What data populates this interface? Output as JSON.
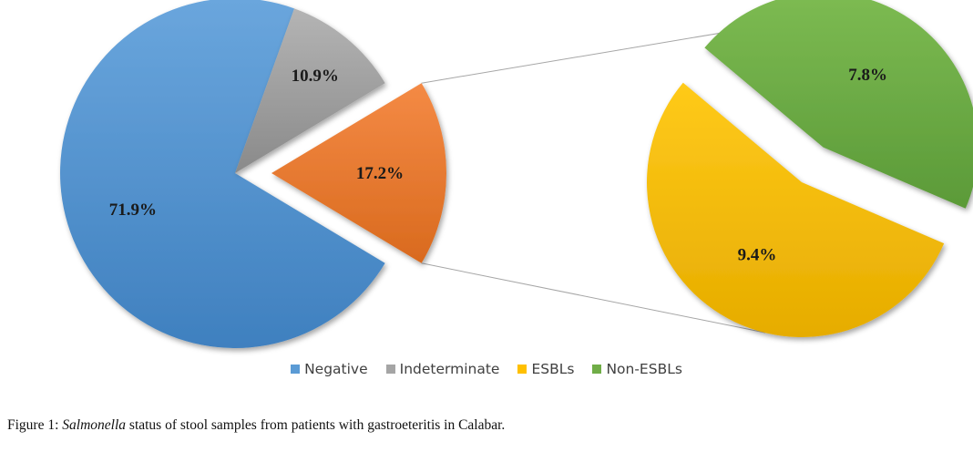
{
  "chart_data": {
    "type": "pie",
    "subtype": "pie-of-pie",
    "main_pie": {
      "slices": [
        {
          "name": "Negative",
          "value": 71.9,
          "label": "71.9%",
          "color": "#5b9bd5"
        },
        {
          "name": "Indeterminate",
          "value": 10.9,
          "label": "10.9%",
          "color": "#a5a5a5"
        },
        {
          "name": "",
          "value": 17.2,
          "label": "17.2%",
          "color": "#ed7d31"
        }
      ]
    },
    "secondary_pie": {
      "slices": [
        {
          "name": "ESBLs",
          "value": 9.4,
          "label": "9.4%",
          "color": "#ffc000"
        },
        {
          "name": "Non-ESBLs",
          "value": 7.8,
          "label": "7.8%",
          "color": "#70ad47"
        }
      ]
    },
    "legend": {
      "placement": "bottom",
      "entries": [
        {
          "label": "Negative",
          "color": "#5b9bd5"
        },
        {
          "label": "Indeterminate",
          "color": "#a5a5a5"
        },
        {
          "label": "ESBLs",
          "color": "#ffc000"
        },
        {
          "label": "Non-ESBLs",
          "color": "#70ad47"
        }
      ]
    }
  },
  "caption": {
    "lead": "Figure 1:",
    "italic": "Salmonella",
    "rest": "status of stool samples from patients with gastroeteritis in Calabar."
  }
}
